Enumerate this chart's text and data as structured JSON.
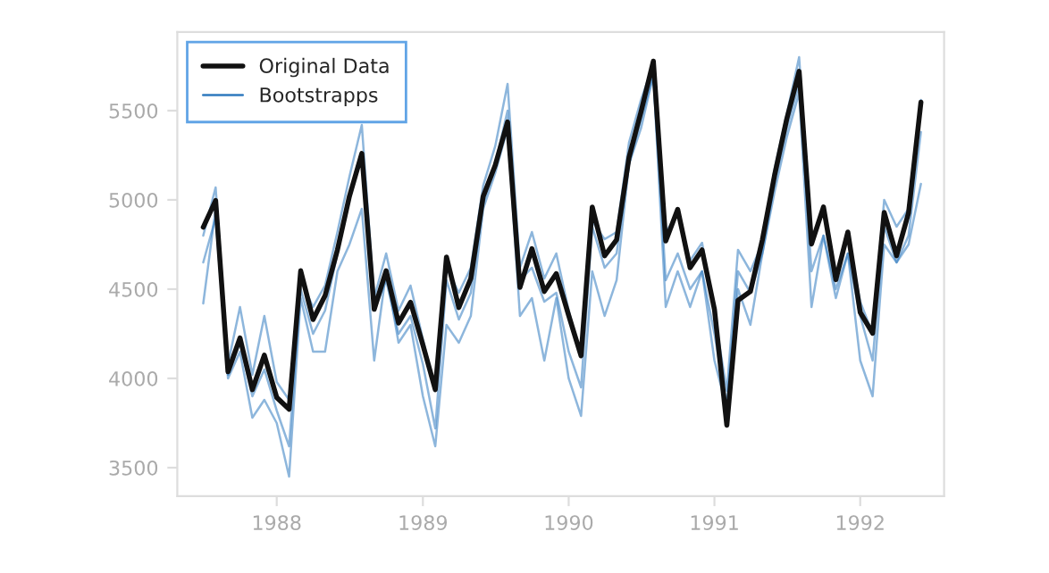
{
  "chart_data": {
    "type": "line",
    "x": [
      "1987-07",
      "1987-08",
      "1987-09",
      "1987-10",
      "1987-11",
      "1987-12",
      "1988-01",
      "1988-02",
      "1988-03",
      "1988-04",
      "1988-05",
      "1988-06",
      "1988-07",
      "1988-08",
      "1988-09",
      "1988-10",
      "1988-11",
      "1988-12",
      "1989-01",
      "1989-02",
      "1989-03",
      "1989-04",
      "1989-05",
      "1989-06",
      "1989-07",
      "1989-08",
      "1989-09",
      "1989-10",
      "1989-11",
      "1989-12",
      "1990-01",
      "1990-02",
      "1990-03",
      "1990-04",
      "1990-05",
      "1990-06",
      "1990-07",
      "1990-08",
      "1990-09",
      "1990-10",
      "1990-11",
      "1990-12",
      "1991-01",
      "1991-02",
      "1991-03",
      "1991-04",
      "1991-05",
      "1991-06",
      "1991-07",
      "1991-08",
      "1991-09",
      "1991-10",
      "1991-11",
      "1991-12",
      "1992-01",
      "1992-02",
      "1992-03",
      "1992-04",
      "1992-05",
      "1992-06"
    ],
    "series": [
      {
        "name": "Bootstrapps",
        "color": "#2f7abf",
        "values": [
          4800,
          5070,
          4080,
          4400,
          4020,
          4350,
          3980,
          3880,
          4550,
          4400,
          4520,
          4820,
          5130,
          5420,
          4450,
          4700,
          4380,
          4520,
          4220,
          3930,
          4620,
          4480,
          4620,
          5080,
          5300,
          5650,
          4620,
          4820,
          4560,
          4700,
          4380,
          4120,
          4880,
          4780,
          4820,
          5320,
          5560,
          5760,
          4820,
          4920,
          4660,
          4760,
          4360,
          3930,
          4720,
          4600,
          4760,
          5180,
          5480,
          5800,
          4760,
          4960,
          4580,
          4780,
          4430,
          4250,
          5000,
          4850,
          4950,
          5560
        ]
      },
      {
        "color": "#2f7abf",
        "values": [
          4650,
          4900,
          4020,
          4200,
          3900,
          4050,
          3820,
          3620,
          4500,
          4250,
          4380,
          4700,
          5000,
          5250,
          4380,
          4550,
          4250,
          4350,
          4080,
          3720,
          4550,
          4330,
          4480,
          4980,
          5200,
          5500,
          4550,
          4620,
          4430,
          4480,
          4150,
          3950,
          4850,
          4620,
          4700,
          5200,
          5450,
          5700,
          4550,
          4700,
          4500,
          4600,
          4250,
          3850,
          4600,
          4480,
          4700,
          5100,
          5400,
          5650,
          4600,
          4800,
          4500,
          4700,
          4350,
          4100,
          4850,
          4650,
          4800,
          5380
        ]
      },
      {
        "color": "#2f7abf",
        "values": [
          4420,
          4950,
          4000,
          4150,
          3780,
          3880,
          3750,
          3450,
          4450,
          4150,
          4150,
          4600,
          4750,
          4950,
          4100,
          4600,
          4200,
          4300,
          3900,
          3620,
          4300,
          4200,
          4350,
          4950,
          5150,
          5400,
          4350,
          4450,
          4100,
          4450,
          4000,
          3790,
          4600,
          4350,
          4550,
          5200,
          5400,
          5700,
          4400,
          4600,
          4400,
          4600,
          4100,
          3830,
          4500,
          4300,
          4700,
          5050,
          5350,
          5600,
          4400,
          4800,
          4450,
          4700,
          4100,
          3900,
          4750,
          4650,
          4750,
          5090
        ]
      },
      {
        "name": "Original Data",
        "color": "#111111",
        "values": [
          4847,
          4997,
          4037,
          4227,
          3937,
          4130,
          3893,
          3827,
          4603,
          4330,
          4463,
          4720,
          5020,
          5260,
          4387,
          4603,
          4310,
          4427,
          4187,
          3937,
          4680,
          4397,
          4560,
          5020,
          5193,
          5437,
          4510,
          4727,
          4487,
          4587,
          4353,
          4127,
          4960,
          4687,
          4777,
          5237,
          5493,
          5777,
          4770,
          4947,
          4620,
          4720,
          4387,
          3737,
          4437,
          4487,
          4777,
          5143,
          5453,
          5720,
          4753,
          4960,
          4553,
          4820,
          4370,
          4253,
          4930,
          4687,
          4927,
          5547
        ]
      }
    ],
    "xlim": [
      "1987-04-27",
      "1992-07-29"
    ],
    "xticks": [
      "1988",
      "1989",
      "1990",
      "1991",
      "1992"
    ],
    "ylim": [
      3340,
      5940
    ],
    "yticks": [
      3500,
      4000,
      4500,
      5000,
      5500
    ],
    "legend": "top left",
    "grid": false,
    "line_style": "solid",
    "marker": "none"
  }
}
